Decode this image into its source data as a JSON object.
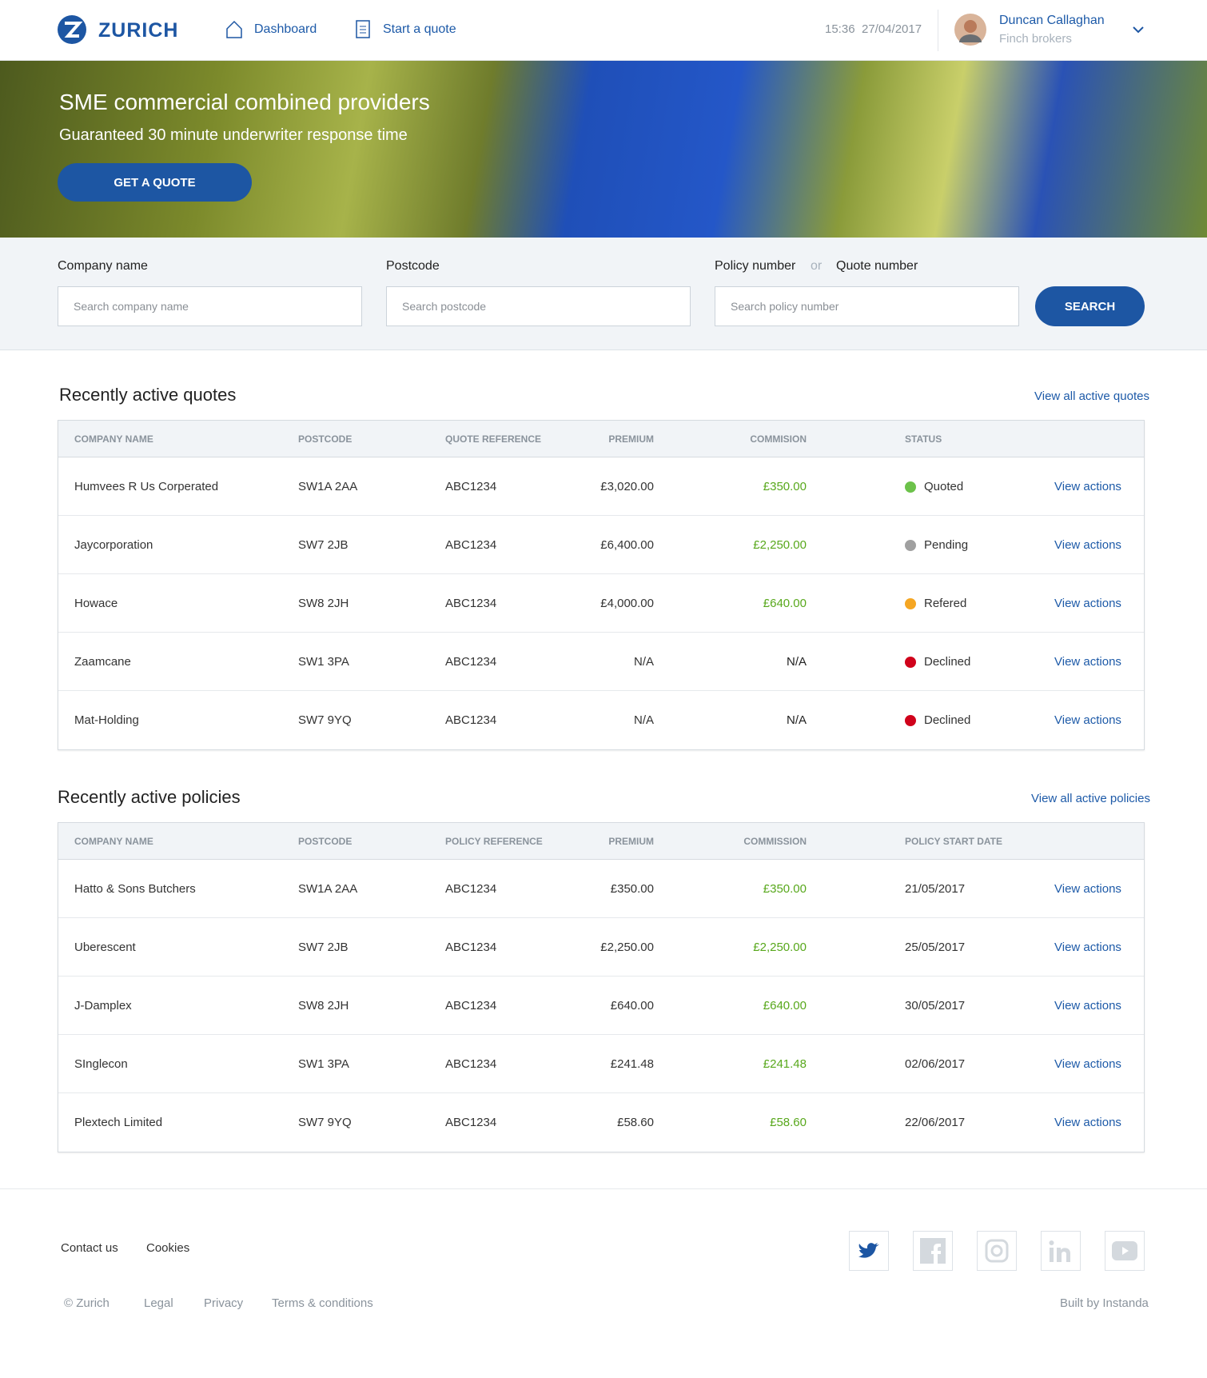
{
  "header": {
    "brand": "ZURICH",
    "nav": [
      "Dashboard",
      "Start a quote"
    ],
    "time": "15:36",
    "date": "27/04/2017",
    "user_name": "Duncan Callaghan",
    "user_company": "Finch brokers"
  },
  "hero": {
    "title": "SME commercial combined providers",
    "subtitle": "Guaranteed 30 minute underwriter response time",
    "button": "GET A QUOTE"
  },
  "search": {
    "company_label": "Company name",
    "company_placeholder": "Search company name",
    "postcode_label": "Postcode",
    "postcode_placeholder": "Search postcode",
    "policy_label": "Policy number",
    "or": "or",
    "quote_label": "Quote number",
    "policy_placeholder": "Search policy number",
    "button": "SEARCH"
  },
  "quotes": {
    "title": "Recently active quotes",
    "view_all": "View all active quotes",
    "action": "View actions",
    "columns": [
      "COMPANY NAME",
      "POSTCODE",
      "QUOTE REFERENCE",
      "PREMIUM",
      "COMMISION",
      "STATUS"
    ],
    "rows": [
      {
        "company": "Humvees R Us Corperated",
        "postcode": "SW1A 2AA",
        "reference": "ABC1234",
        "premium": "£3,020.00",
        "commission": "£350.00",
        "status": "Quoted",
        "status_color": "#6cc24a"
      },
      {
        "company": "Jaycorporation",
        "postcode": "SW7 2JB",
        "reference": "ABC1234",
        "premium": "£6,400.00",
        "commission": "£2,250.00",
        "status": "Pending",
        "status_color": "#a0a0a0"
      },
      {
        "company": "Howace",
        "postcode": "SW8 2JH",
        "reference": "ABC1234",
        "premium": "£4,000.00",
        "commission": "£640.00",
        "status": "Refered",
        "status_color": "#f5a623"
      },
      {
        "company": "Zaamcane",
        "postcode": "SW1 3PA",
        "reference": "ABC1234",
        "premium": "N/A",
        "commission": "N/A",
        "status": "Declined",
        "status_color": "#d0021b"
      },
      {
        "company": "Mat-Holding",
        "postcode": "SW7 9YQ",
        "reference": "ABC1234",
        "premium": "N/A",
        "commission": "N/A",
        "status": "Declined",
        "status_color": "#d0021b"
      }
    ]
  },
  "policies": {
    "title": "Recently active policies",
    "view_all": "View all active policies",
    "action": "View actions",
    "columns": [
      "COMPANY NAME",
      "POSTCODE",
      "POLICY REFERENCE",
      "PREMIUM",
      "COMMISSION",
      "POLICY START DATE"
    ],
    "rows": [
      {
        "company": "Hatto & Sons Butchers",
        "postcode": "SW1A 2AA",
        "reference": "ABC1234",
        "premium": "£350.00",
        "commission": "£350.00",
        "start_date": "21/05/2017"
      },
      {
        "company": "Uberescent",
        "postcode": "SW7 2JB",
        "reference": "ABC1234",
        "premium": "£2,250.00",
        "commission": "£2,250.00",
        "start_date": "25/05/2017"
      },
      {
        "company": "J-Damplex",
        "postcode": "SW8 2JH",
        "reference": "ABC1234",
        "premium": "£640.00",
        "commission": "£640.00",
        "start_date": "30/05/2017"
      },
      {
        "company": "SInglecon",
        "postcode": "SW1 3PA",
        "reference": "ABC1234",
        "premium": "£241.48",
        "commission": "£241.48",
        "start_date": "02/06/2017"
      },
      {
        "company": "Plextech Limited",
        "postcode": "SW7 9YQ",
        "reference": "ABC1234",
        "premium": "£58.60",
        "commission": "£58.60",
        "start_date": "22/06/2017"
      }
    ]
  },
  "footer": {
    "links": [
      "Contact us",
      "Cookies"
    ],
    "legal": [
      "© Zurich",
      "Legal",
      "Privacy",
      "Terms & conditions"
    ],
    "built_by": "Built by Instanda"
  }
}
